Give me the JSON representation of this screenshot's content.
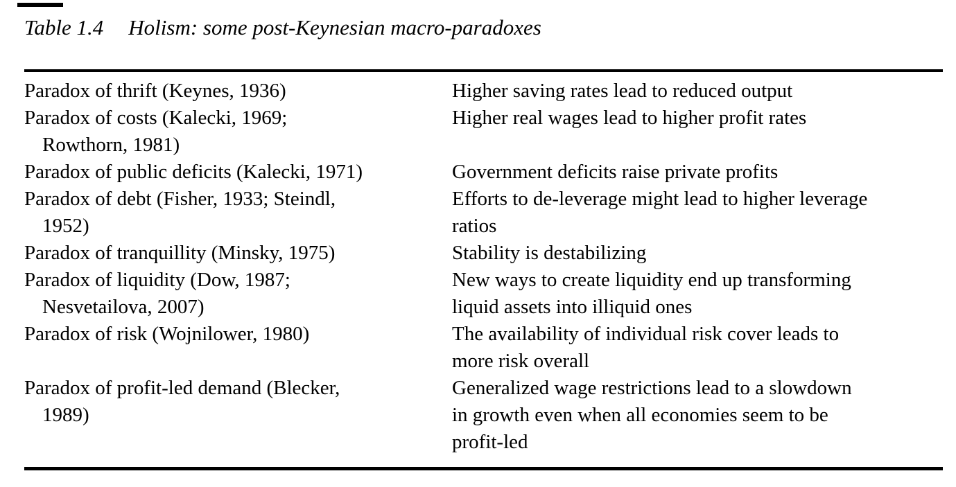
{
  "title": {
    "label": "Table 1.4",
    "text": "Holism: some post-Keynesian macro-paradoxes"
  },
  "table": {
    "rows": [
      {
        "paradox": "Paradox of thrift (Keynes, 1936)",
        "description": "Higher saving rates lead to reduced output"
      },
      {
        "paradox": "Paradox of costs (Kalecki, 1969;\nRowthorn, 1981)",
        "description": "Higher real wages lead to higher profit rates"
      },
      {
        "paradox": "Paradox of public deficits (Kalecki, 1971)",
        "description": "Government deficits raise private profits"
      },
      {
        "paradox": "Paradox of debt (Fisher, 1933; Steindl,\n1952)",
        "description": "Efforts to de-leverage might lead to higher leverage\nratios"
      },
      {
        "paradox": "Paradox of tranquillity (Minsky, 1975)",
        "description": "Stability is destabilizing"
      },
      {
        "paradox": "Paradox of liquidity (Dow, 1987;\nNesvetailova, 2007)",
        "description": "New ways to create liquidity end up transforming\nliquid assets into illiquid ones"
      },
      {
        "paradox": "Paradox of risk (Wojnilower, 1980)",
        "description": "The availability of individual risk cover leads to\nmore risk overall"
      },
      {
        "paradox": "Paradox of profit-led demand (Blecker,\n1989)",
        "description": "Generalized wage restrictions lead to a slowdown\nin growth even when all economies seem to be\nprofit-led"
      }
    ]
  },
  "colors": {
    "background": "#ffffff",
    "text": "#000000",
    "rule": "#000000"
  }
}
